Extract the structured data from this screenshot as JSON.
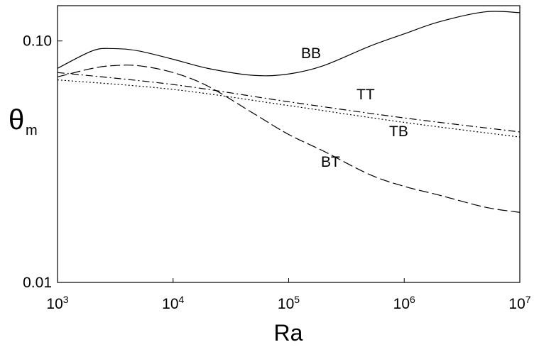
{
  "chart_data": {
    "type": "line",
    "xlabel": "Ra",
    "ylabel": "θ",
    "ylabel_sub": "m",
    "xscale": "log",
    "yscale": "log",
    "xlim": [
      1000,
      10000000
    ],
    "ylim": [
      0.01,
      0.14
    ],
    "x_ticks": [
      {
        "base": "10",
        "exp": "3"
      },
      {
        "base": "10",
        "exp": "4"
      },
      {
        "base": "10",
        "exp": "5"
      },
      {
        "base": "10",
        "exp": "6"
      },
      {
        "base": "10",
        "exp": "7"
      }
    ],
    "y_ticks": [
      {
        "value": 0.01,
        "label": "0.01"
      },
      {
        "value": 0.1,
        "label": "0.10"
      }
    ],
    "grid": false,
    "legend": "none",
    "series": [
      {
        "name": "BB",
        "dash": "solid",
        "x": [
          1000,
          2000,
          3000,
          5000,
          10000,
          20000,
          50000,
          100000,
          200000,
          500000,
          1000000,
          2000000,
          5000000,
          10000000
        ],
        "y": [
          0.077,
          0.091,
          0.093,
          0.091,
          0.084,
          0.077,
          0.072,
          0.073,
          0.079,
          0.095,
          0.107,
          0.12,
          0.132,
          0.131
        ]
      },
      {
        "name": "BT",
        "dash": "long-dash",
        "x": [
          1000,
          2000,
          3000,
          5000,
          10000,
          20000,
          50000,
          100000,
          200000,
          500000,
          1000000,
          2000000,
          5000000,
          10000000
        ],
        "y": [
          0.071,
          0.077,
          0.079,
          0.079,
          0.074,
          0.065,
          0.05,
          0.041,
          0.035,
          0.028,
          0.025,
          0.023,
          0.0205,
          0.0195
        ]
      },
      {
        "name": "TT",
        "dash": "dash-dot",
        "x": [
          1000,
          10000,
          100000,
          1000000,
          10000000
        ],
        "y": [
          0.074,
          0.066,
          0.056,
          0.048,
          0.042
        ]
      },
      {
        "name": "TB",
        "dash": "dotted",
        "x": [
          1000,
          10000,
          100000,
          1000000,
          10000000
        ],
        "y": [
          0.069,
          0.063,
          0.054,
          0.046,
          0.04
        ]
      }
    ],
    "annotations": [
      {
        "text": "BB",
        "series": "BB"
      },
      {
        "text": "TT",
        "series": "TT"
      },
      {
        "text": "TB",
        "series": "TB"
      },
      {
        "text": "BT",
        "series": "BT"
      }
    ]
  }
}
